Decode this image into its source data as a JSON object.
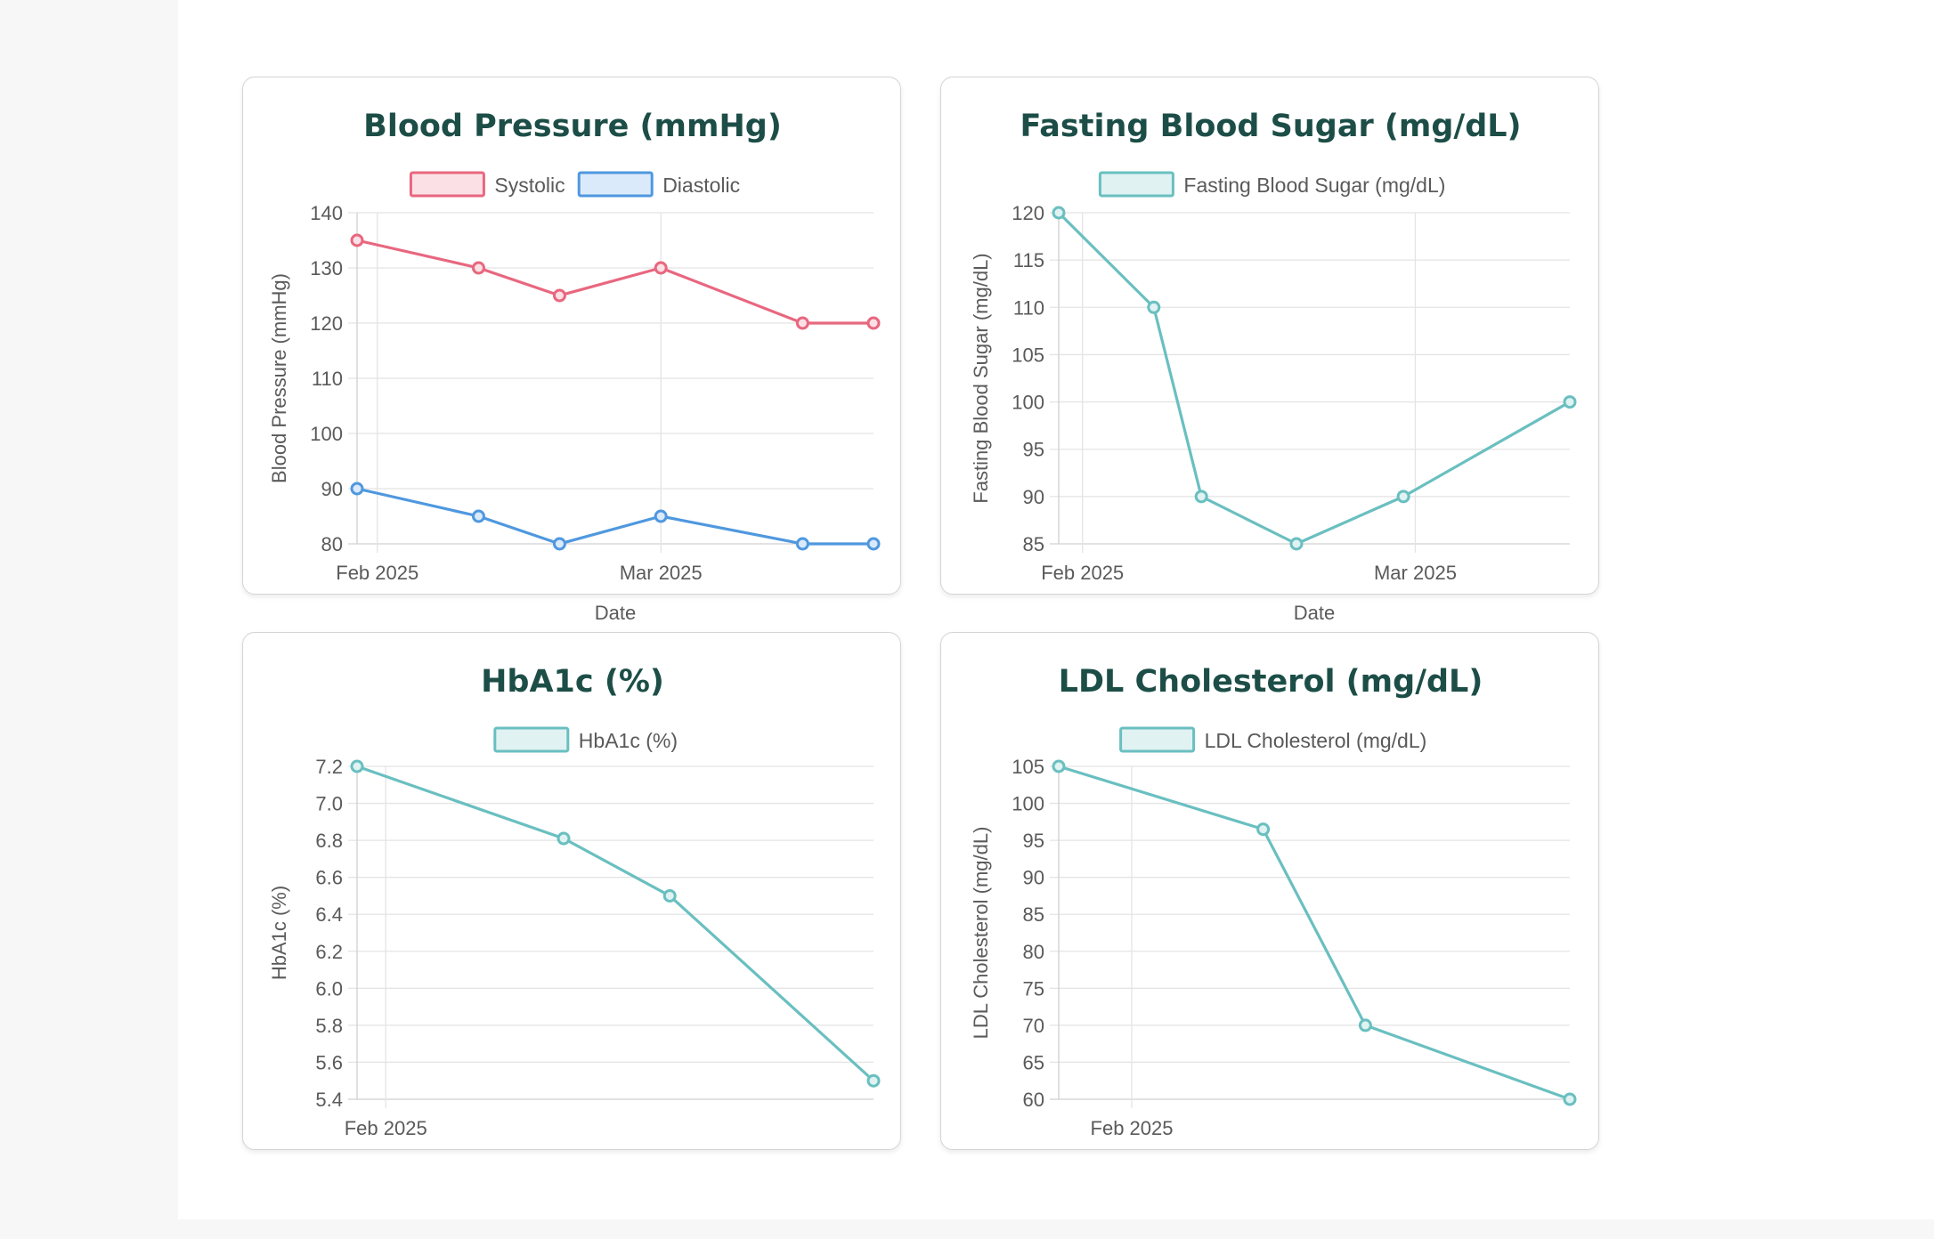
{
  "colors": {
    "title": "#1c4e47",
    "systolic": "#e8677f",
    "systolic_fill": "#fbe1e6",
    "diastolic": "#4f98df",
    "diastolic_fill": "#dbeafb",
    "teal": "#6abfc0",
    "teal_fill": "#e0f2f2"
  },
  "chart_data": [
    {
      "id": "bp",
      "type": "line",
      "title": "Blood Pressure (mmHg)",
      "xlabel": "Date",
      "ylabel": "Blood Pressure (mmHg)",
      "ylim": [
        80,
        140
      ],
      "y_ticks": [
        80,
        90,
        100,
        110,
        120,
        130,
        140
      ],
      "x_ticks": [
        {
          "label": "Feb 2025",
          "day": 2
        },
        {
          "label": "Mar 2025",
          "day": 30
        }
      ],
      "x_range_days": [
        0,
        51
      ],
      "legend": [
        "Systolic",
        "Diastolic"
      ],
      "series": [
        {
          "name": "Systolic",
          "color_key": "systolic",
          "fill_key": "systolic_fill",
          "days": [
            0,
            12,
            20,
            30,
            44,
            51
          ],
          "values": [
            135,
            130,
            125,
            130,
            120,
            120
          ]
        },
        {
          "name": "Diastolic",
          "color_key": "diastolic",
          "fill_key": "diastolic_fill",
          "days": [
            0,
            12,
            20,
            30,
            44,
            51
          ],
          "values": [
            90,
            85,
            80,
            85,
            80,
            80
          ]
        }
      ]
    },
    {
      "id": "fbs",
      "type": "line",
      "title": "Fasting Blood Sugar (mg/dL)",
      "xlabel": "Date",
      "ylabel": "Fasting Blood Sugar (mg/dL)",
      "ylim": [
        85,
        120
      ],
      "y_ticks": [
        85,
        90,
        95,
        100,
        105,
        110,
        115,
        120
      ],
      "x_ticks": [
        {
          "label": "Feb 2025",
          "day": 2
        },
        {
          "label": "Mar 2025",
          "day": 30
        }
      ],
      "x_range_days": [
        0,
        43
      ],
      "legend": [
        "Fasting Blood Sugar (mg/dL)"
      ],
      "series": [
        {
          "name": "Fasting Blood Sugar (mg/dL)",
          "color_key": "teal",
          "fill_key": "teal_fill",
          "days": [
            0,
            8,
            12,
            20,
            29,
            43
          ],
          "values": [
            120,
            110,
            90,
            85,
            90,
            100
          ]
        }
      ]
    },
    {
      "id": "a1c",
      "type": "line",
      "title": "HbA1c (%)",
      "xlabel": "",
      "ylabel": "HbA1c (%)",
      "ylim": [
        5.4,
        7.2
      ],
      "y_ticks": [
        "5.4",
        "5.6",
        "5.8",
        "6.0",
        "6.2",
        "6.4",
        "6.6",
        "6.8",
        "7.0",
        "7.2"
      ],
      "x_ticks": [
        {
          "label": "Feb 2025",
          "day": 5
        }
      ],
      "x_range_days": [
        0,
        90
      ],
      "legend": [
        "HbA1c (%)"
      ],
      "series": [
        {
          "name": "HbA1c (%)",
          "color_key": "teal",
          "fill_key": "teal_fill",
          "days": [
            0,
            36,
            54.5,
            90
          ],
          "values": [
            7.2,
            6.81,
            6.5,
            5.5
          ]
        }
      ]
    },
    {
      "id": "ldl",
      "type": "line",
      "title": "LDL Cholesterol (mg/dL)",
      "xlabel": "",
      "ylabel": "LDL Cholesterol (mg/dL)",
      "ylim": [
        60,
        105
      ],
      "y_ticks": [
        60,
        65,
        70,
        75,
        80,
        85,
        90,
        95,
        100,
        105
      ],
      "x_ticks": [
        {
          "label": "Feb 2025",
          "day": 5
        }
      ],
      "x_range_days": [
        0,
        35
      ],
      "legend": [
        "LDL Cholesterol (mg/dL)"
      ],
      "series": [
        {
          "name": "LDL Cholesterol (mg/dL)",
          "color_key": "teal",
          "fill_key": "teal_fill",
          "days": [
            0,
            14,
            21,
            35
          ],
          "values": [
            105,
            96.5,
            70,
            60
          ]
        }
      ]
    }
  ]
}
